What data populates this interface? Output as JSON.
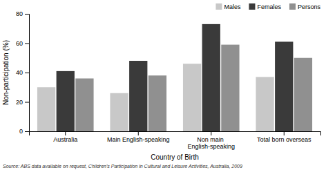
{
  "chart_data": {
    "type": "bar",
    "categories": [
      "Australia",
      "Main English-speaking",
      "Non main English-speaking",
      "Total born overseas"
    ],
    "xlabel": "Country of Birth",
    "ylabel": "Non-participation (%)",
    "series": [
      {
        "name": "Males",
        "color": "#c8c8c8",
        "values": [
          30,
          26,
          46,
          37
        ]
      },
      {
        "name": "Females",
        "color": "#3a3a3a",
        "values": [
          41,
          48,
          73,
          61
        ]
      },
      {
        "name": "Persons",
        "color": "#909090",
        "values": [
          36,
          38,
          59,
          50
        ]
      }
    ],
    "ylim": [
      0,
      80
    ],
    "yticks": [
      0,
      20,
      40,
      60,
      80
    ],
    "grid": false,
    "legend": "upper right",
    "annotations": [
      "Source: ABS data available on request, Children's Participation in Cultural and Leisure Activities, Australia, 2009"
    ]
  }
}
